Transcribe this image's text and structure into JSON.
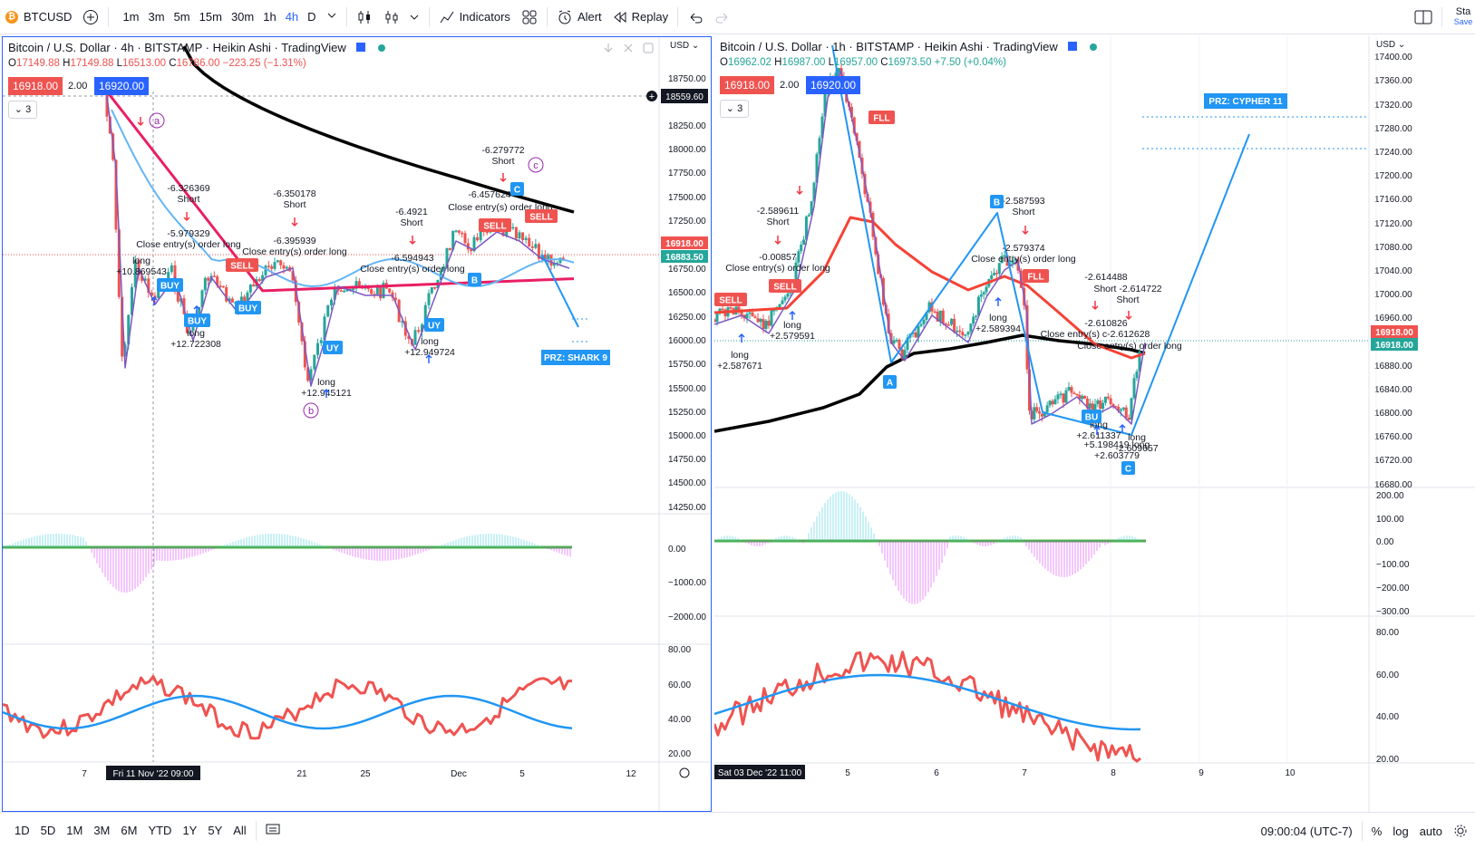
{
  "toolbar": {
    "symbol": "BTCUSD",
    "intervals": [
      "1m",
      "3m",
      "5m",
      "15m",
      "30m",
      "1h",
      "4h",
      "D"
    ],
    "active_interval": "4h",
    "indicators": "Indicators",
    "alert": "Alert",
    "replay": "Replay",
    "save": "Sta",
    "save2": "Save"
  },
  "left": {
    "legend": "Bitcoin / U.S. Dollar · 4h · BITSTAMP · Heikin Ashi · TradingView",
    "ohlc": {
      "o": "17149.88",
      "h": "17149.88",
      "l": "16513.00",
      "c": "16786.00",
      "chg": "−223.25 (−1.31%)"
    },
    "sell_price": "16918.00",
    "qty": "2.00",
    "buy_price": "16920.00",
    "collapse": "3",
    "currency": "USD",
    "yticks": [
      "18750.00",
      "18250.00",
      "18000.00",
      "17750.00",
      "17500.00",
      "17250.00",
      "16750.00",
      "16500.00",
      "16250.00",
      "16000.00",
      "15750.00",
      "15500.00",
      "15250.00",
      "15000.00",
      "14750.00",
      "14500.00",
      "14250.00"
    ],
    "cursor_price": "18559.60",
    "last_price": "16918.00",
    "ma_price": "16883.50",
    "macd_ticks": [
      "0.00",
      "−1000.00",
      "−2000.00"
    ],
    "rsi_ticks": [
      "80.00",
      "60.00",
      "40.00",
      "20.00"
    ],
    "xticks": [
      "7",
      "21",
      "25",
      "Dec",
      "5",
      "12"
    ],
    "cursor_date": "Fri 11 Nov '22   09:00",
    "prz": "PRZ: SHARK 9",
    "labels": [
      {
        "t": "-6.326369"
      },
      {
        "t": "Short"
      },
      {
        "t": "-5.979329"
      },
      {
        "t": "Close entry(s) order long"
      },
      {
        "t": "long"
      },
      {
        "t": "+10.869543"
      },
      {
        "t": "long"
      },
      {
        "t": "+12.722308"
      },
      {
        "t": "-6.350178"
      },
      {
        "t": "Short"
      },
      {
        "t": "-6.395939"
      },
      {
        "t": "Close entry(s) order long"
      },
      {
        "t": "long"
      },
      {
        "t": "+12.945121"
      },
      {
        "t": "-6.4921"
      },
      {
        "t": "Short"
      },
      {
        "t": "-6.594943"
      },
      {
        "t": "Close entry(s) order long"
      },
      {
        "t": "long"
      },
      {
        "t": "+12.949724"
      },
      {
        "t": "-6.279772"
      },
      {
        "t": "Short"
      },
      {
        "t": "-6.457624"
      },
      {
        "t": "Close entry(s) order long"
      }
    ],
    "badges": {
      "buy": "BUY",
      "uy": "UY",
      "sell": "SELL",
      "b": "B",
      "c": "C"
    },
    "circle_labels": [
      "a",
      "b",
      "c"
    ]
  },
  "right": {
    "legend": "Bitcoin / U.S. Dollar · 1h · BITSTAMP · Heikin Ashi · TradingView",
    "ohlc": {
      "o": "16962.02",
      "h": "16987.00",
      "l": "16957.00",
      "c": "16973.50",
      "chg": "+7.50 (+0.04%)"
    },
    "sell_price": "16918.00",
    "qty": "2.00",
    "buy_price": "16920.00",
    "collapse": "3",
    "currency": "USD",
    "yticks": [
      "17400.00",
      "17360.00",
      "17320.00",
      "17280.00",
      "17240.00",
      "17200.00",
      "17160.00",
      "17120.00",
      "17080.00",
      "17040.00",
      "17000.00",
      "16960.00",
      "16880.00",
      "16840.00",
      "16800.00",
      "16760.00",
      "16720.00",
      "16680.00"
    ],
    "last_price": "16918.00",
    "ma_price": "16918.00",
    "macd_ticks": [
      "200.00",
      "100.00",
      "0.00",
      "−100.00",
      "−200.00",
      "−300.00"
    ],
    "rsi_ticks": [
      "80.00",
      "60.00",
      "40.00",
      "20.00"
    ],
    "xticks": [
      "5",
      "6",
      "7",
      "8",
      "9",
      "10"
    ],
    "cursor_date": "Sat 03 Dec '22   11:00",
    "prz": "PRZ: CYPHER 11",
    "labels": [
      {
        "t": "-2.589611"
      },
      {
        "t": "Short"
      },
      {
        "t": "-0.00857"
      },
      {
        "t": "Close entry(s) order long"
      },
      {
        "t": "long"
      },
      {
        "t": "+2.579591"
      },
      {
        "t": "long"
      },
      {
        "t": "+2.587671"
      },
      {
        "t": "-2.587593"
      },
      {
        "t": "Short"
      },
      {
        "t": "-2.579374"
      },
      {
        "t": "Close entry(s) order long"
      },
      {
        "t": "long"
      },
      {
        "t": "+2.589394"
      },
      {
        "t": "-2.614488"
      },
      {
        "t": "Short -2.614722"
      },
      {
        "t": "Short"
      },
      {
        "t": "-2.610826"
      },
      {
        "t": "Close entry(s) c-2.612628"
      },
      {
        "t": "Close entry(s) order long"
      },
      {
        "t": "long"
      },
      {
        "t": "+2.611337"
      },
      {
        "t": "+5.198419 long"
      },
      {
        "t": "+2.603779"
      },
      {
        "t": "long"
      },
      {
        "t": "-2.609657"
      }
    ],
    "badges": {
      "sell": "SELL",
      "fll": "FLL",
      "b": "B",
      "a": "A",
      "c": "C",
      "bu": "BU"
    }
  },
  "bottom": {
    "ranges": [
      "1D",
      "5D",
      "1M",
      "3M",
      "6M",
      "YTD",
      "1Y",
      "5Y",
      "All"
    ],
    "time": "09:00:04 (UTC-7)",
    "pct": "%",
    "log": "log",
    "auto": "auto"
  },
  "colors": {
    "accent": "#2962ff",
    "red": "#ef5350",
    "green": "#26a69a",
    "blue": "#2196f3",
    "magenta": "#e91e63",
    "black": "#000000"
  }
}
